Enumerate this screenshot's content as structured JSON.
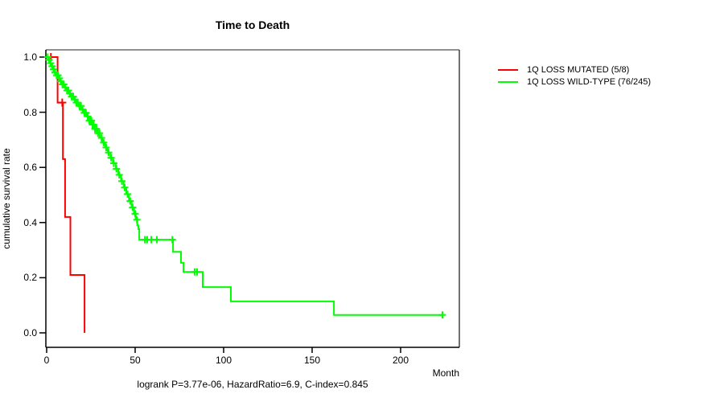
{
  "title": "Time to Death",
  "footer": {
    "stats_line": "logrank P=3.77e-06, HazardRatio=6.9, C-index=0.845"
  },
  "axes": {
    "x": {
      "label": "Month",
      "tick_labels": [
        "0",
        "50",
        "100",
        "150",
        "200"
      ],
      "tick_values": [
        0,
        50,
        100,
        150,
        200
      ]
    },
    "y": {
      "label": "cumulative survival rate",
      "tick_labels": [
        "1.0",
        "0.8",
        "0.6",
        "0.4",
        "0.2",
        "0.0"
      ],
      "tick_values": [
        1.0,
        0.8,
        0.6,
        0.4,
        0.2,
        0.0
      ]
    }
  },
  "legend": {
    "items": [
      {
        "label": "1Q LOSS MUTATED (5/8)",
        "color": "#ff0000"
      },
      {
        "label": "1Q LOSS WILD-TYPE (76/245)",
        "color": "#00ff00"
      }
    ]
  },
  "colors": {
    "mutated": "#ff0000",
    "wildtype": "#00ff00",
    "box_top": "#909090",
    "box_right": "#404040",
    "axis": "#000000"
  },
  "chart_data": {
    "type": "line",
    "subtype": "kaplan-meier-step",
    "title": "Time to Death",
    "xlabel": "Month",
    "ylabel": "cumulative survival rate",
    "xlim": [
      0,
      233
    ],
    "ylim": [
      0.0,
      1.0
    ],
    "grid": false,
    "legend_position": "right-outside",
    "annotation": "logrank P=3.77e-06, HazardRatio=6.9, C-index=0.845",
    "series": [
      {
        "name": "1Q LOSS MUTATED (5/8)",
        "color": "#ff0000",
        "n_events": 5,
        "n_total": 8,
        "steps": [
          [
            0,
            1.0
          ],
          [
            6.2,
            0.835
          ],
          [
            9.2,
            0.63
          ],
          [
            10.4,
            0.42
          ],
          [
            13.4,
            0.21
          ],
          [
            21.4,
            0.0
          ]
        ],
        "end_month": 21.4,
        "censor_months": [
          2.4,
          8.8
        ]
      },
      {
        "name": "1Q LOSS WILD-TYPE (76/245)",
        "color": "#00ff00",
        "n_events": 76,
        "n_total": 245,
        "steps": [
          [
            0,
            1.0
          ],
          [
            1.2,
            0.99
          ],
          [
            2.0,
            0.978
          ],
          [
            2.8,
            0.967
          ],
          [
            3.5,
            0.956
          ],
          [
            4.5,
            0.945
          ],
          [
            5.5,
            0.934
          ],
          [
            6.5,
            0.923
          ],
          [
            7.5,
            0.912
          ],
          [
            8.7,
            0.901
          ],
          [
            10.0,
            0.89
          ],
          [
            11.2,
            0.879
          ],
          [
            12.5,
            0.868
          ],
          [
            14.0,
            0.857
          ],
          [
            15.3,
            0.846
          ],
          [
            16.5,
            0.835
          ],
          [
            18.0,
            0.823
          ],
          [
            19.5,
            0.81
          ],
          [
            21.0,
            0.798
          ],
          [
            22.5,
            0.785
          ],
          [
            24.0,
            0.77
          ],
          [
            25.5,
            0.755
          ],
          [
            27.0,
            0.74
          ],
          [
            28.5,
            0.724
          ],
          [
            30.0,
            0.707
          ],
          [
            31.5,
            0.69
          ],
          [
            33.0,
            0.672
          ],
          [
            34.5,
            0.654
          ],
          [
            36.0,
            0.635
          ],
          [
            37.5,
            0.615
          ],
          [
            39.0,
            0.595
          ],
          [
            40.5,
            0.573
          ],
          [
            42.0,
            0.55
          ],
          [
            43.5,
            0.527
          ],
          [
            45.0,
            0.503
          ],
          [
            46.5,
            0.478
          ],
          [
            48.0,
            0.455
          ],
          [
            49.3,
            0.432
          ],
          [
            50.3,
            0.41
          ],
          [
            51.2,
            0.39
          ],
          [
            51.8,
            0.376
          ],
          [
            52.3,
            0.338
          ],
          [
            71.4,
            0.294
          ],
          [
            75.9,
            0.254
          ],
          [
            77.3,
            0.221
          ],
          [
            88.2,
            0.166
          ],
          [
            104.1,
            0.114
          ],
          [
            162.3,
            0.065
          ]
        ],
        "end_month": 223.6,
        "censor_months": [
          0.6,
          1.4,
          2.2,
          3.1,
          3.9,
          4.7,
          5.6,
          6.4,
          7.2,
          8.0,
          8.9,
          9.7,
          10.6,
          11.5,
          12.3,
          13.2,
          14.1,
          15.0,
          15.9,
          16.8,
          17.6,
          18.5,
          19.4,
          20.3,
          21.3,
          22.2,
          23.2,
          24.1,
          24.7,
          25.3,
          25.9,
          26.5,
          27.3,
          28.1,
          29.0,
          29.9,
          31.0,
          32.2,
          33.6,
          35.0,
          36.4,
          37.9,
          39.4,
          41.0,
          42.5,
          44.1,
          45.7,
          47.2,
          48.6,
          50.0,
          51.0,
          55.5,
          56.8,
          59.1,
          62.3,
          71.0,
          83.6,
          85.0,
          223.6
        ]
      }
    ]
  }
}
